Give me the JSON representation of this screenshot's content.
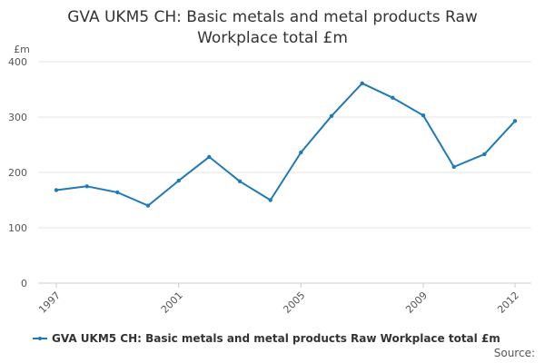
{
  "chart_data": {
    "type": "line",
    "title": "GVA UKM5 CH: Basic metals and metal products Raw\nWorkplace total £m",
    "ylabel": "£m",
    "xlabel": "",
    "x": [
      1997,
      1998,
      1999,
      2000,
      2001,
      2002,
      2003,
      2004,
      2005,
      2006,
      2007,
      2008,
      2009,
      2010,
      2011,
      2012
    ],
    "xticks": [
      "1997",
      "2001",
      "2005",
      "2009",
      "2012"
    ],
    "xlim": [
      1997,
      2012
    ],
    "yticks": [
      "0",
      "100",
      "200",
      "300",
      "400"
    ],
    "ylim": [
      0,
      400
    ],
    "grid": true,
    "legend_position": "bottom-left",
    "series": [
      {
        "name": "GVA UKM5 CH: Basic metals and metal products Raw Workplace total £m",
        "color": "#1f7ab8",
        "values": [
          168,
          175,
          164,
          140,
          185,
          228,
          184,
          150,
          236,
          302,
          361,
          335,
          303,
          210,
          233,
          293
        ]
      }
    ]
  },
  "source_label": "Source:"
}
